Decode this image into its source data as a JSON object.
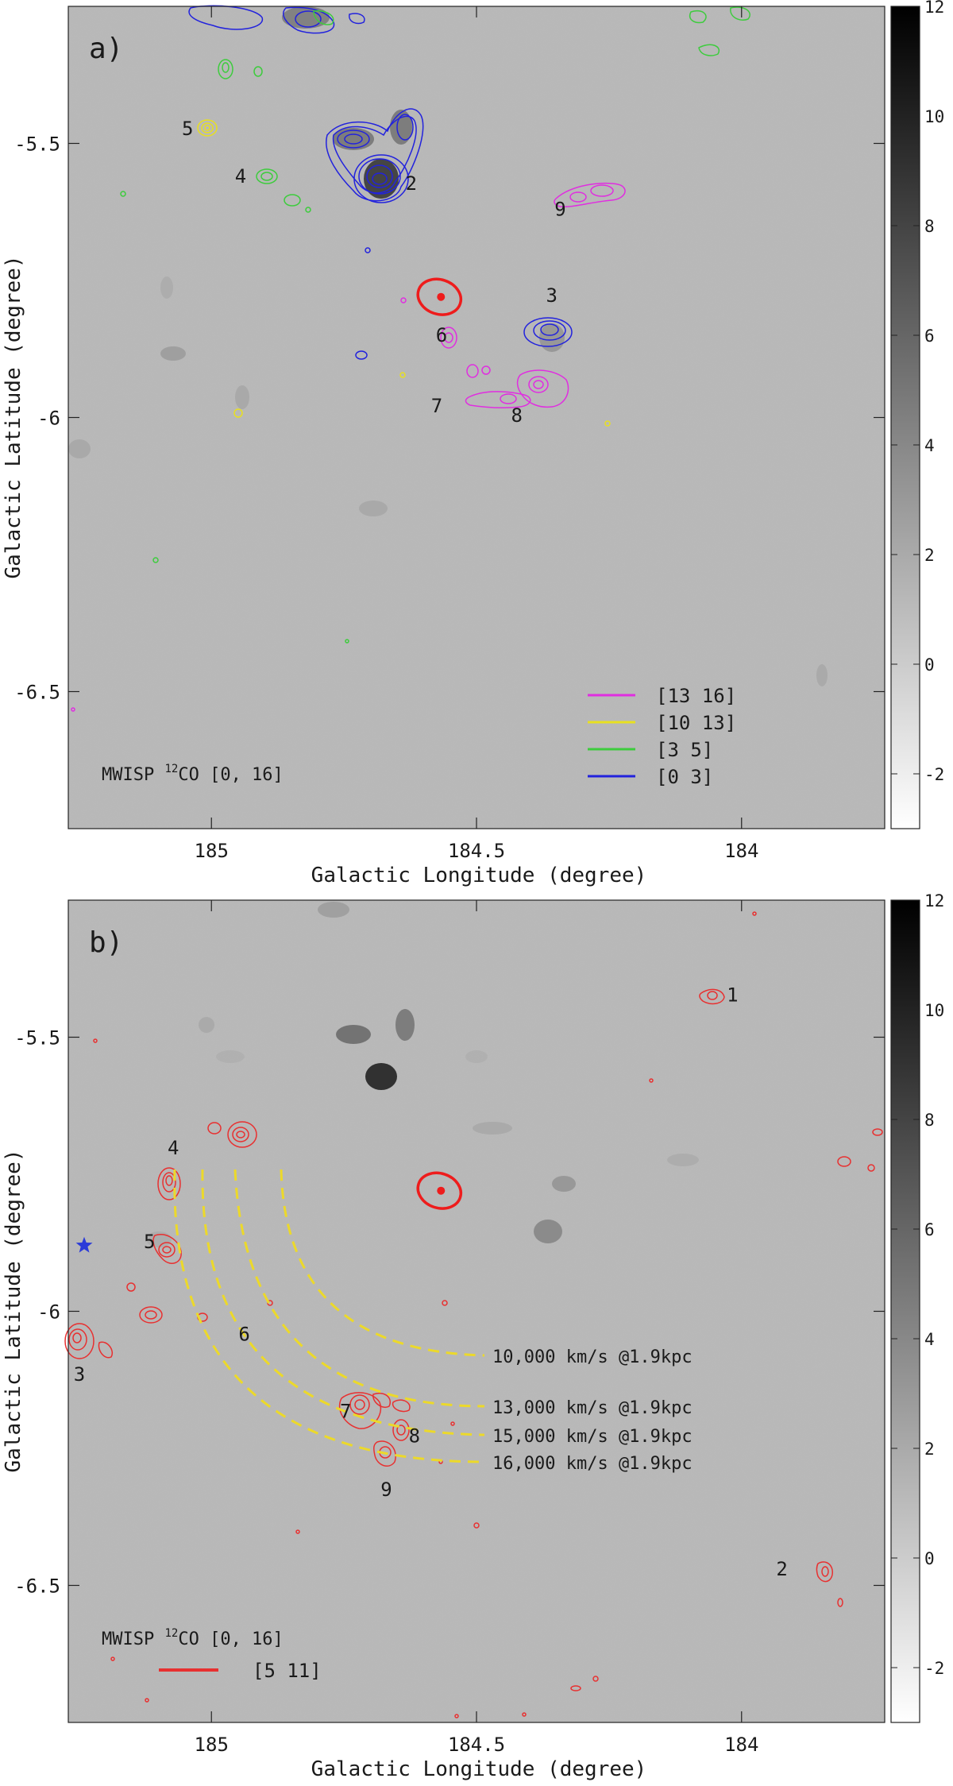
{
  "figure": {
    "chart_data": [
      {
        "type": "heatmap",
        "panel_label": "a)",
        "xlabel": "Galactic Longitude (degree)",
        "ylabel": "Galactic Latitude (degree)",
        "x_reversed": true,
        "xlim": [
          185.27,
          183.73
        ],
        "ylim": [
          -6.75,
          -5.25
        ],
        "xticks": [
          "185",
          "184.5",
          "184"
        ],
        "yticks": [
          "-5.5",
          "-6",
          "-6.5"
        ],
        "colorbar": {
          "range": [
            -3,
            12
          ],
          "ticks": [
            "12",
            "10",
            "8",
            "6",
            "4",
            "2",
            "0",
            "-2"
          ]
        },
        "background_text": {
          "prefix": "MWISP ",
          "sup": "12",
          "suffix": "CO [0, 16]"
        },
        "legend": {
          "position": "bottom-right",
          "entries": [
            {
              "label": "[13 16]",
              "color": "#e02ee0"
            },
            {
              "label": "[10 13]",
              "color": "#e8e020"
            },
            {
              "label": "[3 5]",
              "color": "#3dcc3d"
            },
            {
              "label": "[0 3]",
              "color": "#2222dd"
            }
          ]
        },
        "beam": {
          "l": 184.57,
          "b": -5.78,
          "rl": 0.055,
          "rb": 0.045,
          "color": "#ee1c1c"
        },
        "clouds": [
          {
            "label": "2",
            "l": 184.68,
            "b": -5.57,
            "color": "#2222dd"
          },
          {
            "label": "3",
            "l": 184.37,
            "b": -5.83,
            "color": "#2222dd"
          },
          {
            "label": "4",
            "l": 184.9,
            "b": -5.56,
            "color": "#3dcc3d"
          },
          {
            "label": "5",
            "l": 185.0,
            "b": -5.47,
            "color": "#e8e020"
          },
          {
            "label": "6",
            "l": 184.53,
            "b": -5.85,
            "color": "#e02ee0"
          },
          {
            "label": "7",
            "l": 184.53,
            "b": -5.95,
            "color": "#e02ee0"
          },
          {
            "label": "8",
            "l": 184.4,
            "b": -5.95,
            "color": "#e02ee0"
          },
          {
            "label": "9",
            "l": 184.3,
            "b": -5.6,
            "color": "#e02ee0"
          }
        ]
      },
      {
        "type": "heatmap",
        "panel_label": "b)",
        "xlabel": "Galactic Longitude (degree)",
        "ylabel": "Galactic Latitude (degree)",
        "x_reversed": true,
        "xlim": [
          185.27,
          183.73
        ],
        "ylim": [
          -6.75,
          -5.25
        ],
        "xticks": [
          "185",
          "184.5",
          "184"
        ],
        "yticks": [
          "-5.5",
          "-6",
          "-6.5"
        ],
        "colorbar": {
          "range": [
            -3,
            12
          ],
          "ticks": [
            "12",
            "10",
            "8",
            "6",
            "4",
            "2",
            "0",
            "-2"
          ]
        },
        "background_text": {
          "prefix": "MWISP ",
          "sup": "12",
          "suffix": "CO [0, 16]"
        },
        "legend": {
          "position": "bottom-left",
          "entries": [
            {
              "label": "[5 11]",
              "color": "#e83030"
            }
          ]
        },
        "beam": {
          "l": 184.57,
          "b": -5.78,
          "rl": 0.055,
          "rb": 0.045,
          "color": "#ee1c1c"
        },
        "star": {
          "l": 185.24,
          "b": -5.88,
          "color": "#2b3bd8"
        },
        "clouds": [
          {
            "label": "1",
            "l": 184.08,
            "b": -5.42
          },
          {
            "label": "2",
            "l": 183.87,
            "b": -6.47
          },
          {
            "label": "3",
            "l": 185.24,
            "b": -6.06
          },
          {
            "label": "4",
            "l": 185.06,
            "b": -5.76
          },
          {
            "label": "5",
            "l": 185.06,
            "b": -5.87
          },
          {
            "label": "6",
            "l": 184.95,
            "b": -5.99
          },
          {
            "label": "7",
            "l": 184.69,
            "b": -6.18
          },
          {
            "label": "8",
            "l": 184.65,
            "b": -6.21
          },
          {
            "label": "9",
            "l": 184.67,
            "b": -6.27
          }
        ],
        "arcs": [
          {
            "label": "10,000 km/s @1.9kpc"
          },
          {
            "label": "13,000 km/s @1.9kpc"
          },
          {
            "label": "15,000 km/s @1.9kpc"
          },
          {
            "label": "16,000 km/s @1.9kpc"
          }
        ],
        "arc_color": "#ecd92a"
      }
    ]
  }
}
